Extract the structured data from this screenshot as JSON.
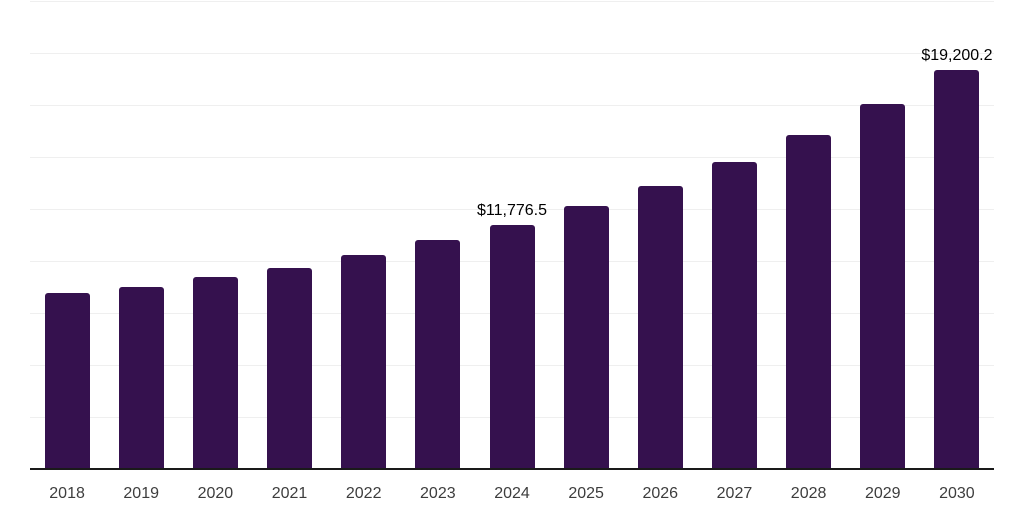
{
  "chart_data": {
    "type": "bar",
    "categories": [
      "2018",
      "2019",
      "2020",
      "2021",
      "2022",
      "2023",
      "2024",
      "2025",
      "2026",
      "2027",
      "2028",
      "2029",
      "2030"
    ],
    "values": [
      8480,
      8800,
      9250,
      9700,
      10320,
      11040,
      11776.5,
      12670,
      13630,
      14770,
      16080,
      17550,
      19200.2
    ],
    "data_labels": [
      {
        "category": "2024",
        "text": "$11,776.5"
      },
      {
        "category": "2030",
        "text": "$19,200.2"
      }
    ],
    "title": "",
    "xlabel": "",
    "ylabel": "",
    "ylim": [
      0,
      22500
    ],
    "gridline_interval": 2500,
    "grid": "horizontal",
    "legend": "none",
    "colors": {
      "bar": "#35114E",
      "gridline": "#EFEFEF",
      "axis_line": "#1A1A1A",
      "tick_label": "#3D3D3D",
      "data_label": "#000000",
      "background": "#FFFFFF"
    }
  }
}
